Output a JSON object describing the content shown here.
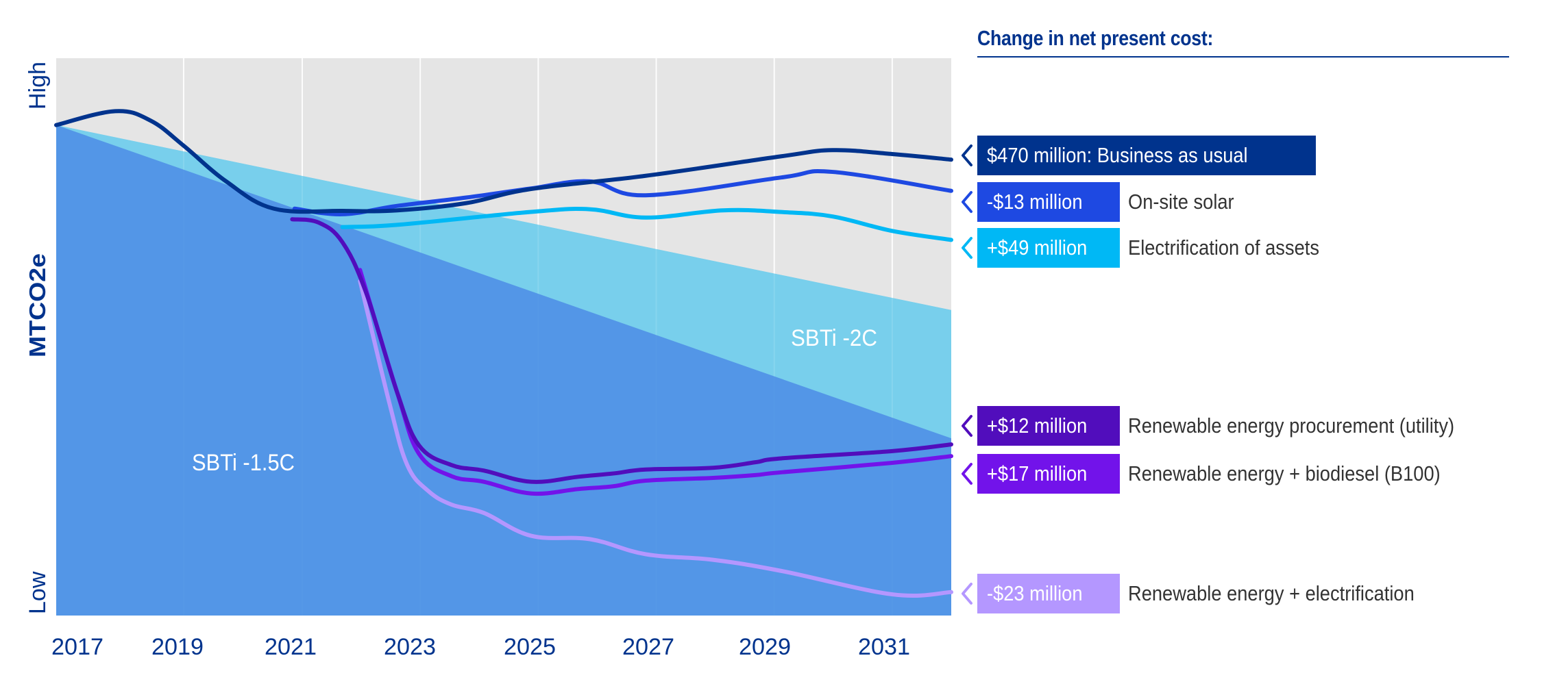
{
  "chart_data": {
    "type": "line",
    "title": "",
    "xlabel": "",
    "ylabel": "MTCO2e",
    "y_axis_end_labels": {
      "top": "High",
      "bottom": "Low"
    },
    "y_scale_note": "qualitative relative index, 0 = Low, 100 = High",
    "xlim": [
      2016.75,
      2031.92
    ],
    "ylim": [
      0,
      100
    ],
    "x_tick_labels": [
      "2017",
      "2019",
      "2021",
      "2023",
      "2025",
      "2027",
      "2029",
      "2031"
    ],
    "grid": {
      "vertical": true,
      "horizontal": false
    },
    "areas": [
      {
        "name": "SBTi -1.5C",
        "label": "SBTi -1.5C",
        "color": "#4f8fe6",
        "x": [
          2016.75,
          2031.92
        ],
        "y": [
          88.0,
          31.8
        ]
      },
      {
        "name": "SBTi -2C",
        "label": "SBTi -2C",
        "color": "#78cfec",
        "x": [
          2016.75,
          2031.92
        ],
        "y": [
          88.0,
          54.8
        ]
      }
    ],
    "series": [
      {
        "name": "Business as usual",
        "color": "#00338d",
        "x": [
          2016.75,
          2017.75,
          2018.35,
          2018.91,
          2019.63,
          2020.44,
          2021.6,
          2022.53,
          2023.7,
          2024.78,
          2026.74,
          2029.04,
          2029.91,
          2030.92,
          2031.92
        ],
        "y": [
          88.0,
          90.5,
          88.8,
          84.3,
          77.9,
          73.0,
          72.6,
          72.7,
          74.0,
          76.5,
          78.9,
          82.4,
          83.5,
          82.8,
          81.8
        ]
      },
      {
        "name": "On-site solar",
        "color": "#1e49e2",
        "x": [
          2020.79,
          2021.6,
          2022.53,
          2023.7,
          2024.78,
          2025.79,
          2026.74,
          2029.04,
          2029.91,
          2031.92
        ],
        "y": [
          73.0,
          72.0,
          73.5,
          75.0,
          76.6,
          77.9,
          75.4,
          78.6,
          79.6,
          76.2
        ]
      },
      {
        "name": "Electrification of assets",
        "color": "#00b8f5",
        "x": [
          2021.6,
          2022.53,
          2024.78,
          2025.79,
          2026.74,
          2028.05,
          2029.04,
          2029.91,
          2030.92,
          2031.92
        ],
        "y": [
          69.7,
          70.1,
          72.4,
          72.9,
          71.4,
          72.7,
          72.4,
          71.6,
          69.0,
          67.4
        ]
      },
      {
        "name": "Renewable energy procurement (utility)",
        "color": "#510dbc",
        "x": [
          2020.75,
          2021.2,
          2021.6,
          2022.0,
          2022.53,
          2022.9,
          2023.45,
          2024.0,
          2024.8,
          2025.6,
          2026.2,
          2026.74,
          2027.88,
          2028.6,
          2029.04,
          2030.92,
          2031.92
        ],
        "y": [
          71.1,
          70.5,
          67.0,
          58.0,
          40.0,
          30.5,
          27.0,
          26.0,
          24.0,
          24.9,
          25.5,
          26.2,
          26.5,
          27.5,
          28.2,
          29.5,
          30.7
        ]
      },
      {
        "name": "Renewable energy + biodiesel (B100)",
        "color": "#7213ea",
        "x": [
          2021.9,
          2022.53,
          2022.9,
          2023.45,
          2024.0,
          2024.8,
          2025.6,
          2026.2,
          2026.74,
          2027.88,
          2028.6,
          2029.04,
          2030.92,
          2031.92
        ],
        "y": [
          62.0,
          40.0,
          29.0,
          25.0,
          24.0,
          21.9,
          22.7,
          23.2,
          24.2,
          24.7,
          25.2,
          25.7,
          27.4,
          28.6
        ]
      },
      {
        "name": "Renewable energy + electrification",
        "color": "#b497ff",
        "x": [
          2021.9,
          2022.4,
          2022.7,
          2023.05,
          2023.45,
          2024.0,
          2024.8,
          2025.8,
          2026.74,
          2027.88,
          2029.04,
          2030.92,
          2031.92
        ],
        "y": [
          60.0,
          38.0,
          27.0,
          22.4,
          19.9,
          18.4,
          14.3,
          13.7,
          11.0,
          10.0,
          8.0,
          3.8,
          4.2
        ]
      }
    ]
  },
  "legend": {
    "title": "Change in net present cost:",
    "items": [
      {
        "badge": "$470 million: Business as usual",
        "description": "",
        "color": "#00338d",
        "text_color": "#ffffff"
      },
      {
        "badge": "-$13 million",
        "description": "On-site solar",
        "color": "#1e49e2",
        "text_color": "#ffffff"
      },
      {
        "badge": "+$49 million",
        "description": "Electrification of assets",
        "color": "#00b8f5",
        "text_color": "#ffffff"
      },
      {
        "badge": "+$12 million",
        "description": "Renewable energy procurement (utility)",
        "color": "#510dbc",
        "text_color": "#ffffff"
      },
      {
        "badge": "+$17 million",
        "description": "Renewable energy + biodiesel (B100)",
        "color": "#7213ea",
        "text_color": "#ffffff"
      },
      {
        "badge": "-$23 million",
        "description": "Renewable energy + electrification",
        "color": "#b497ff",
        "text_color": "#ffffff"
      }
    ]
  },
  "colors": {
    "axis_text": "#00338d",
    "plot_background": "#e5e5e5",
    "gridline": "#ffffff",
    "area_label_text": "#ffffff"
  }
}
